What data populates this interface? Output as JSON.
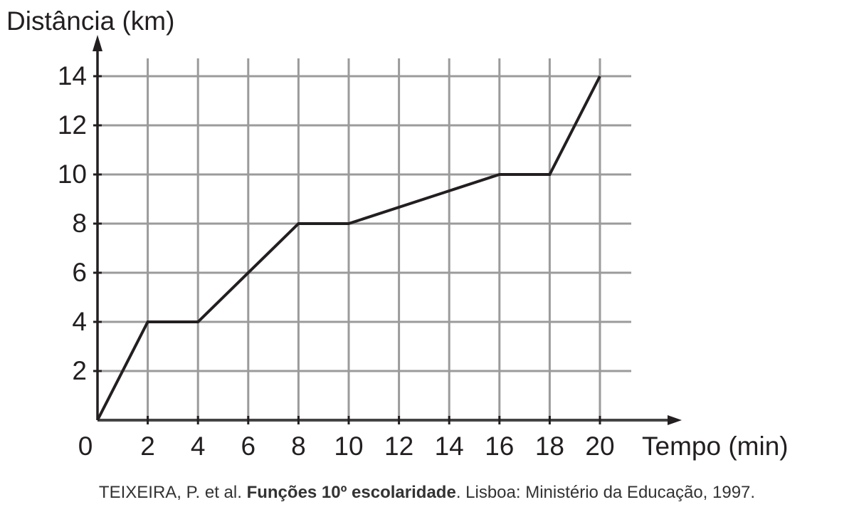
{
  "chart_data": {
    "type": "line",
    "title": "",
    "xlabel": "Tempo (min)",
    "ylabel": "Distância (km)",
    "x": [
      0,
      2,
      4,
      8,
      10,
      16,
      18,
      20
    ],
    "series": [
      {
        "name": "Distância",
        "values": [
          0,
          4,
          4,
          8,
          8,
          10,
          10,
          14
        ]
      }
    ],
    "xticks": [
      "0",
      "2",
      "4",
      "6",
      "8",
      "10",
      "12",
      "14",
      "16",
      "18",
      "20"
    ],
    "yticks": [
      "2",
      "4",
      "6",
      "8",
      "10",
      "12",
      "14"
    ],
    "xlim": [
      0,
      20
    ],
    "ylim": [
      0,
      14
    ],
    "grid": true,
    "legend": "none",
    "line_color": "#231f20",
    "grid_color": "#9b9b9b"
  },
  "source": {
    "prefix": "TEIXEIRA, P. et al. ",
    "title": "Funções 10º escolaridade",
    "suffix": ". Lisboa: Ministério da Educação, 1997."
  }
}
